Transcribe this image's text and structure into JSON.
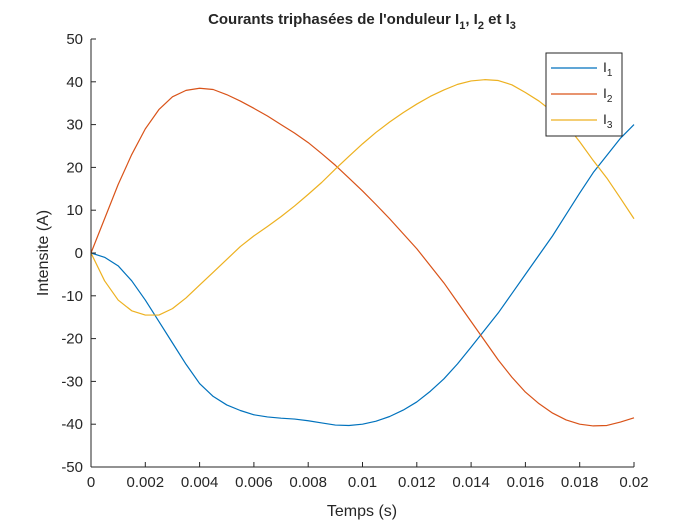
{
  "chart_data": {
    "type": "line",
    "title": {
      "main": "Courants triphasées de l'onduleur I",
      "sub1": "1",
      "sep1": ", I",
      "sub2": "2",
      "sep2": " et I",
      "sub3": "3"
    },
    "xlabel": "Temps (s)",
    "ylabel": "Intensite (A)",
    "xlim": [
      0,
      0.02
    ],
    "ylim": [
      -50,
      50
    ],
    "xticks": [
      0,
      0.002,
      0.004,
      0.006,
      0.008,
      0.01,
      0.012,
      0.014,
      0.016,
      0.018,
      0.02
    ],
    "xtick_labels": [
      "0",
      "0.002",
      "0.004",
      "0.006",
      "0.008",
      "0.01",
      "0.012",
      "0.014",
      "0.016",
      "0.018",
      "0.02"
    ],
    "yticks": [
      -50,
      -40,
      -30,
      -20,
      -10,
      0,
      10,
      20,
      30,
      40,
      50
    ],
    "ytick_labels": [
      "-50",
      "-40",
      "-30",
      "-20",
      "-10",
      "0",
      "10",
      "20",
      "30",
      "40",
      "50"
    ],
    "grid": false,
    "legend_position": "top-right",
    "series": [
      {
        "name": "I",
        "sub": "1",
        "color": "#0072BD",
        "x": [
          0,
          0.0005,
          0.001,
          0.0015,
          0.002,
          0.0025,
          0.003,
          0.0035,
          0.004,
          0.0045,
          0.005,
          0.0055,
          0.006,
          0.0065,
          0.007,
          0.0075,
          0.008,
          0.0085,
          0.009,
          0.0095,
          0.01,
          0.0105,
          0.011,
          0.0115,
          0.012,
          0.0125,
          0.013,
          0.0135,
          0.014,
          0.0145,
          0.015,
          0.0155,
          0.016,
          0.0165,
          0.017,
          0.0175,
          0.018,
          0.0185,
          0.019,
          0.0195,
          0.02
        ],
        "values": [
          0,
          -1,
          -3,
          -6.5,
          -11,
          -16,
          -21,
          -26,
          -30.5,
          -33.5,
          -35.5,
          -36.8,
          -37.8,
          -38.3,
          -38.6,
          -38.8,
          -39.2,
          -39.7,
          -40.2,
          -40.3,
          -40,
          -39.3,
          -38.2,
          -36.7,
          -34.8,
          -32.3,
          -29.4,
          -25.9,
          -22,
          -18,
          -14,
          -9.5,
          -5,
          -0.5,
          4,
          9,
          14,
          18.8,
          22.8,
          26.8,
          30
        ]
      },
      {
        "name": "I",
        "sub": "2",
        "color": "#D95319",
        "x": [
          0,
          0.0005,
          0.001,
          0.0015,
          0.002,
          0.0025,
          0.003,
          0.0035,
          0.004,
          0.0045,
          0.005,
          0.0055,
          0.006,
          0.0065,
          0.007,
          0.0075,
          0.008,
          0.0085,
          0.009,
          0.0095,
          0.01,
          0.0105,
          0.011,
          0.0115,
          0.012,
          0.0125,
          0.013,
          0.0135,
          0.014,
          0.0145,
          0.015,
          0.0155,
          0.016,
          0.0165,
          0.017,
          0.0175,
          0.018,
          0.0185,
          0.019,
          0.0195,
          0.02
        ],
        "values": [
          0,
          8,
          16,
          23,
          29,
          33.5,
          36.5,
          38,
          38.5,
          38.2,
          37,
          35.5,
          33.8,
          32,
          30,
          28,
          25.8,
          23.2,
          20.5,
          17.5,
          14.5,
          11.3,
          8,
          4.5,
          1,
          -3,
          -7,
          -11.5,
          -16,
          -20.5,
          -25,
          -29,
          -32.5,
          -35.2,
          -37.4,
          -39,
          -40,
          -40.4,
          -40.3,
          -39.5,
          -38.5
        ]
      },
      {
        "name": "I",
        "sub": "3",
        "color": "#EDB120",
        "x": [
          0,
          0.0005,
          0.001,
          0.0015,
          0.002,
          0.0025,
          0.003,
          0.0035,
          0.004,
          0.0045,
          0.005,
          0.0055,
          0.006,
          0.0065,
          0.007,
          0.0075,
          0.008,
          0.0085,
          0.009,
          0.0095,
          0.01,
          0.0105,
          0.011,
          0.0115,
          0.012,
          0.0125,
          0.013,
          0.0135,
          0.014,
          0.0145,
          0.015,
          0.0155,
          0.016,
          0.0165,
          0.017,
          0.0175,
          0.018,
          0.0185,
          0.019,
          0.0195,
          0.02
        ],
        "values": [
          0,
          -6.5,
          -11,
          -13.5,
          -14.5,
          -14.5,
          -13,
          -10.5,
          -7.5,
          -4.5,
          -1.5,
          1.5,
          4,
          6.2,
          8.5,
          11,
          13.7,
          16.5,
          19.6,
          22.6,
          25.5,
          28.2,
          30.6,
          32.8,
          34.8,
          36.6,
          38.1,
          39.4,
          40.2,
          40.5,
          40.3,
          39.3,
          37.5,
          35.5,
          33,
          30,
          26,
          21.6,
          17.5,
          12.8,
          8
        ]
      }
    ]
  }
}
